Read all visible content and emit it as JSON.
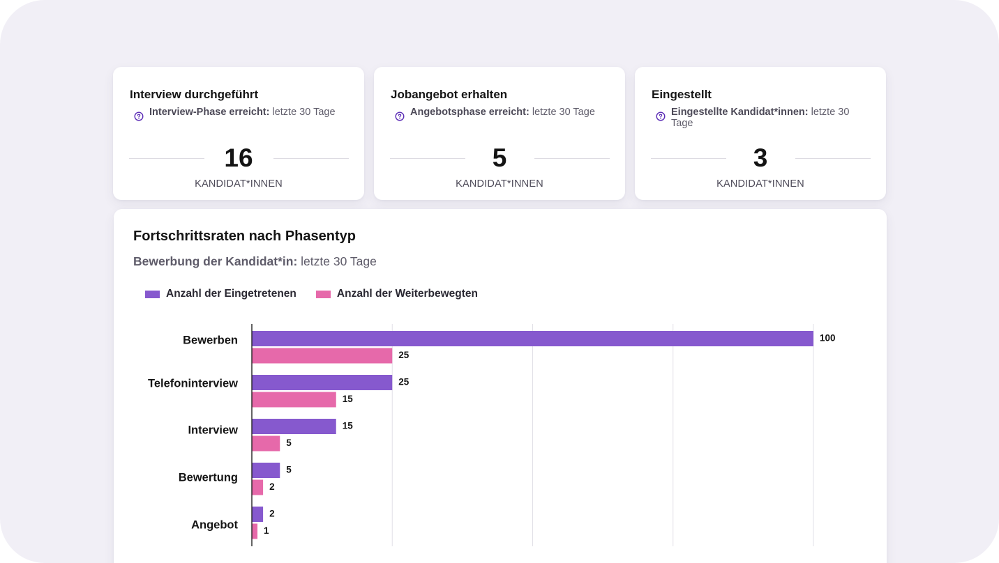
{
  "kpis": [
    {
      "title": "Interview durchgeführt",
      "info_bold": "Interview-Phase erreicht:",
      "info_rest": " letzte 30 Tage",
      "value": "16",
      "unit": "KANDIDAT*INNEN"
    },
    {
      "title": "Jobangebot erhalten",
      "info_bold": "Angebotsphase erreicht:",
      "info_rest": " letzte 30 Tage",
      "value": "5",
      "unit": "KANDIDAT*INNEN"
    },
    {
      "title": "Eingestellt",
      "info_bold": "Eingestellte Kandidat*innen:",
      "info_rest": " letzte 30 Tage",
      "value": "3",
      "unit": "KANDIDAT*INNEN"
    }
  ],
  "icons": {
    "help": "question-circle-icon"
  },
  "chart_panel": {
    "title": "Fortschrittsraten nach Phasentyp",
    "subtitle_bold": "Bewerbung der Kandidat*in:",
    "subtitle_rest": " letzte 30 Tage"
  },
  "chart_data": {
    "type": "bar",
    "orientation": "horizontal",
    "categories": [
      "Bewerben",
      "Telefoninterview",
      "Interview",
      "Bewertung",
      "Angebot"
    ],
    "series": [
      {
        "name": "Anzahl der Eingetretenen",
        "color": "#8659ce",
        "values": [
          100,
          25,
          15,
          5,
          2
        ]
      },
      {
        "name": "Anzahl der Weiterbewegten",
        "color": "#e669aa",
        "values": [
          25,
          15,
          5,
          2,
          1
        ]
      }
    ],
    "xlim": [
      0,
      100
    ],
    "grid": true,
    "legend": "top-left",
    "data_labels": true
  },
  "colors": {
    "primary": "#8659ce",
    "secondary": "#e669aa",
    "icon": "#5a2bb5",
    "background": "#f1eff6"
  }
}
